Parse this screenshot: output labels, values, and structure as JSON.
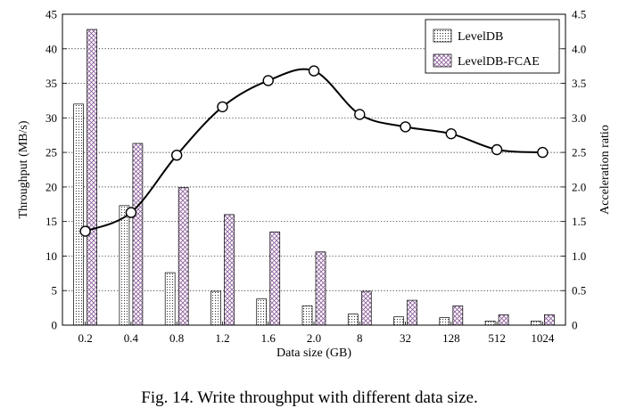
{
  "chart_data": {
    "type": "bar",
    "categories": [
      "0.2",
      "0.4",
      "0.8",
      "1.2",
      "1.6",
      "2.0",
      "8",
      "32",
      "128",
      "512",
      "1024"
    ],
    "series": [
      {
        "name": "LevelDB",
        "axis": "left",
        "values": [
          32.0,
          17.3,
          7.6,
          4.9,
          3.8,
          2.8,
          1.6,
          1.2,
          1.1,
          0.6,
          0.6
        ]
      },
      {
        "name": "LevelDB-FCAE",
        "axis": "left",
        "values": [
          42.8,
          26.3,
          19.9,
          16.0,
          13.5,
          10.6,
          4.9,
          3.6,
          2.8,
          1.5,
          1.5
        ]
      },
      {
        "name": "Acceleration ratio",
        "axis": "right",
        "type": "line",
        "values": [
          1.36,
          1.63,
          2.46,
          3.16,
          3.54,
          3.68,
          3.05,
          2.87,
          2.77,
          2.54,
          2.5
        ]
      }
    ],
    "xlabel": "Data size (GB)",
    "ylabel": "Throughput (MB/s)",
    "y2label": "Acceleration ratio",
    "ylim": [
      0,
      45
    ],
    "y2lim": [
      0,
      4.5
    ],
    "yticks": [
      "0",
      "5",
      "10",
      "15",
      "20",
      "25",
      "30",
      "35",
      "40",
      "45"
    ],
    "y2ticks": [
      "0",
      "0.5",
      "1.0",
      "1.5",
      "2.0",
      "2.5",
      "3.0",
      "3.5",
      "4.0",
      "4.5"
    ],
    "grid": "horizontal dotted",
    "legend_position": "top-right"
  },
  "caption": "Fig. 14.  Write throughput with different data size."
}
